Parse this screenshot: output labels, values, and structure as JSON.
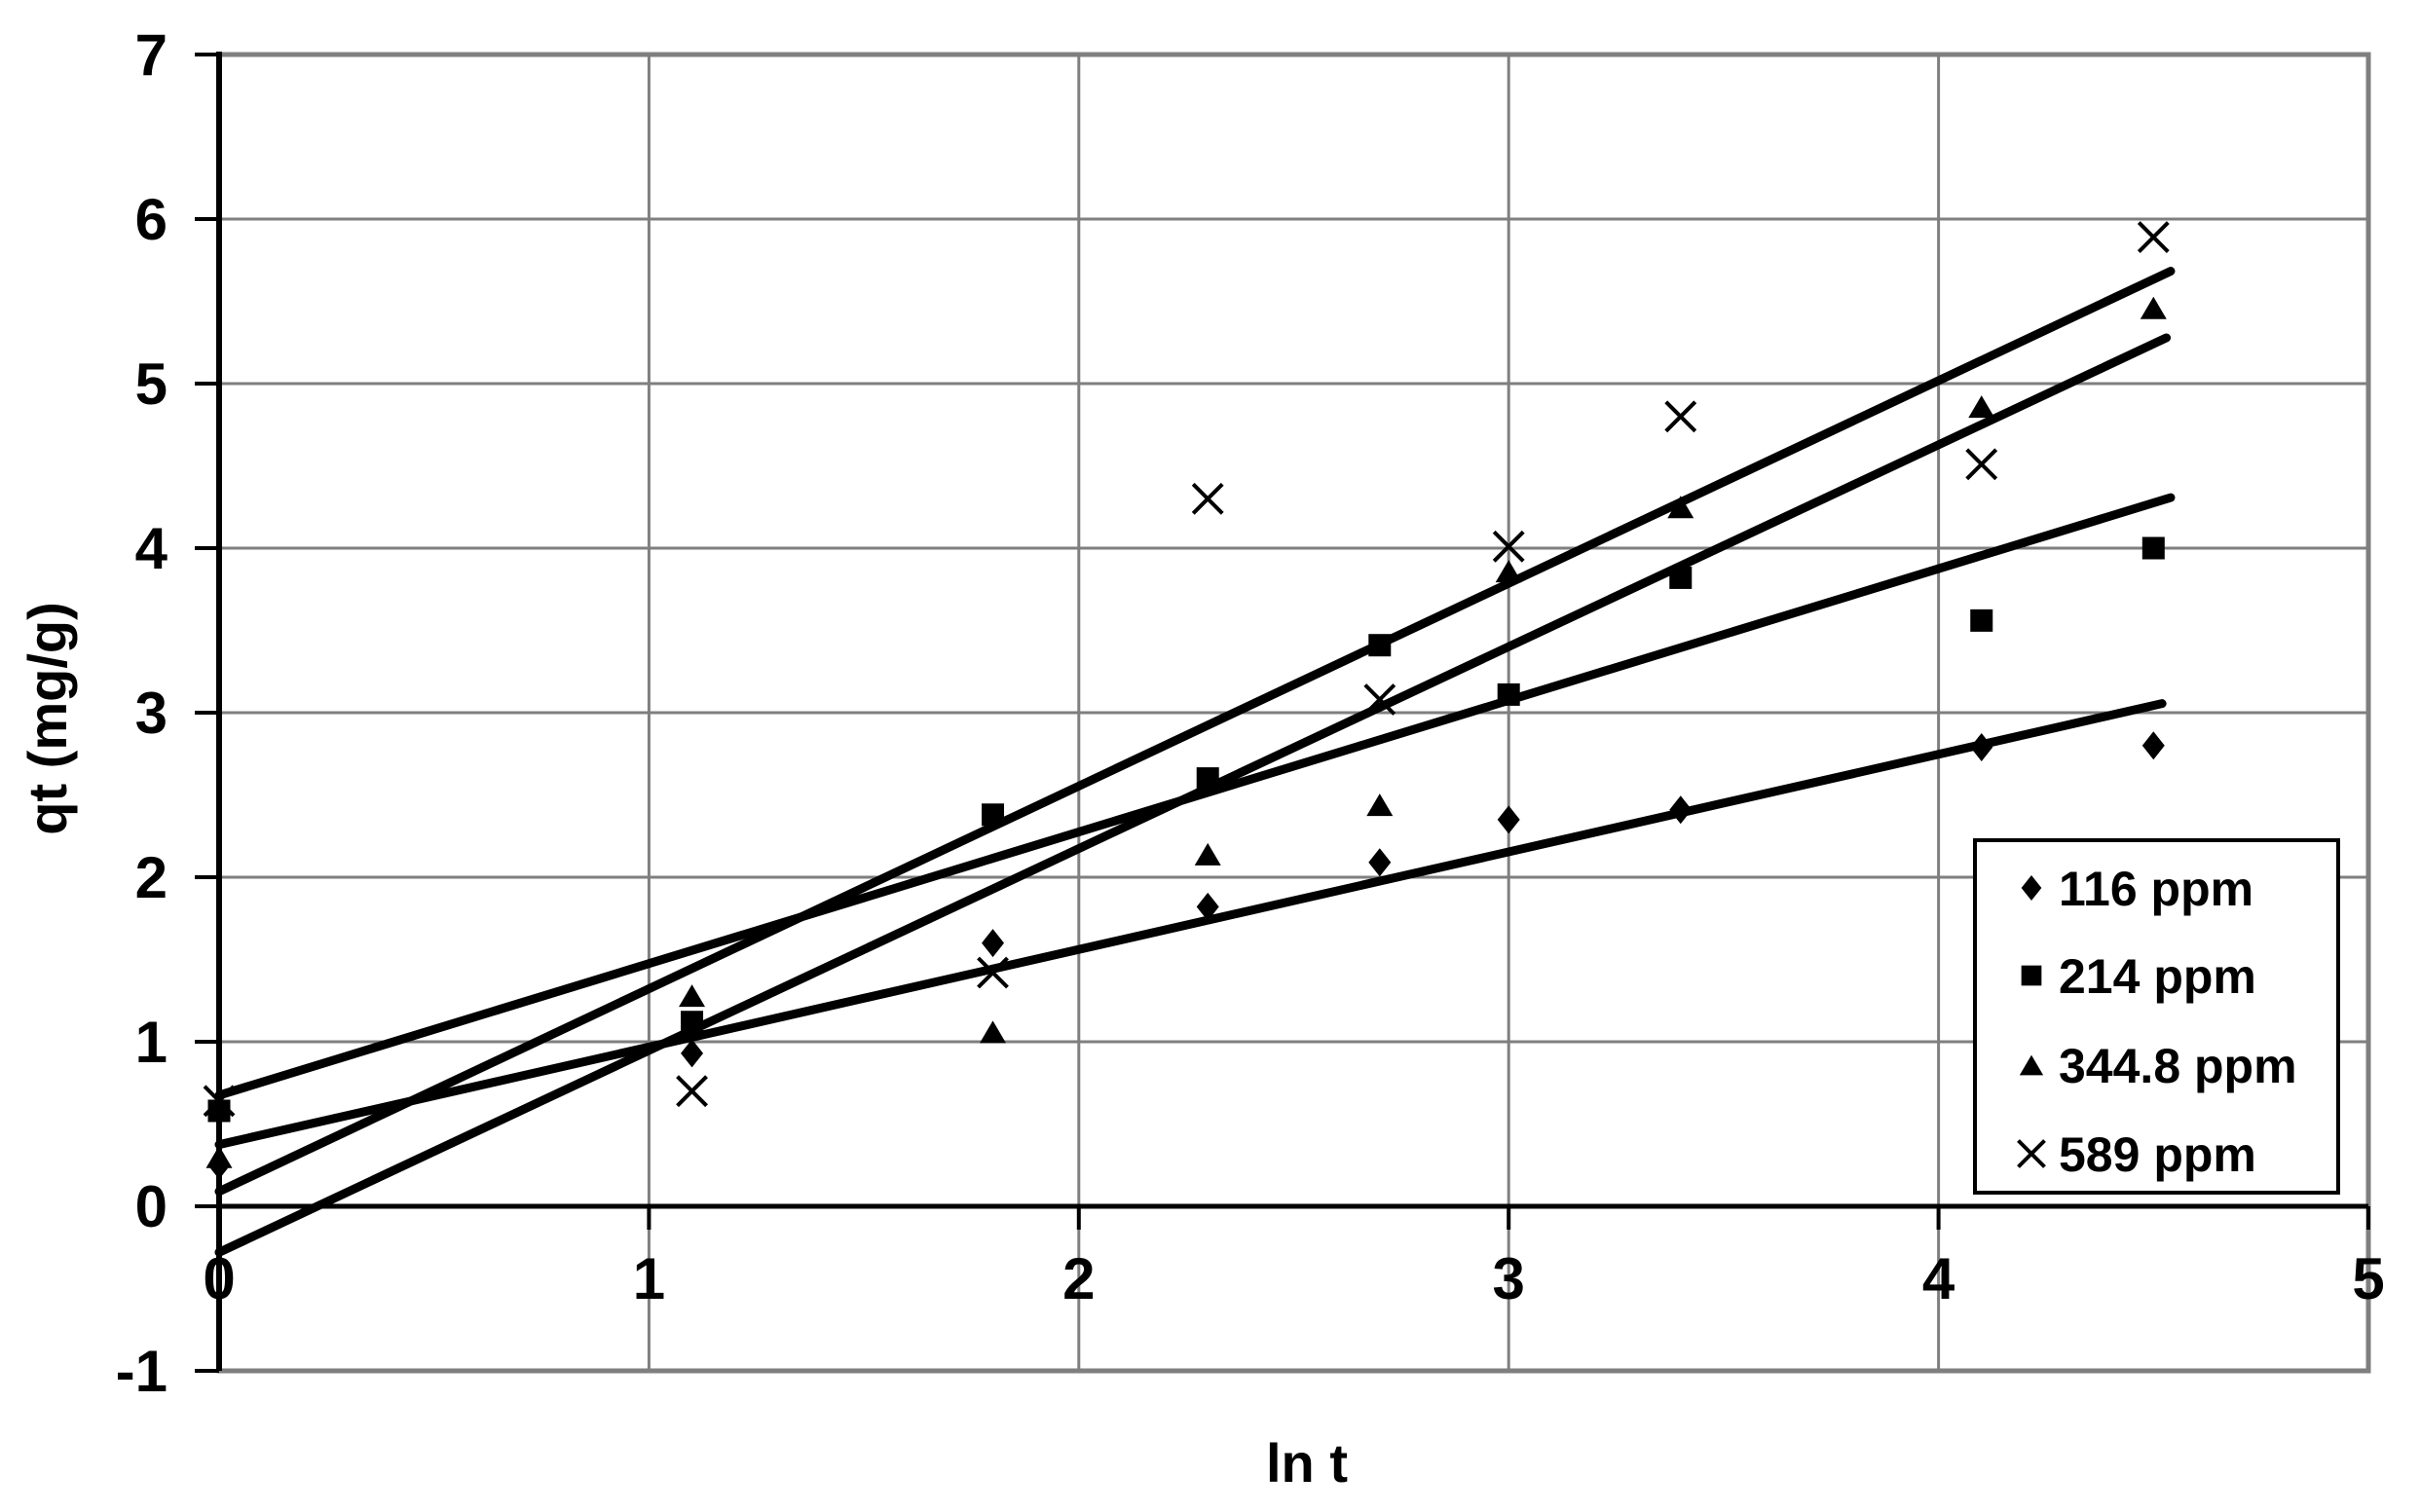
{
  "colors": {
    "foreground": "#000000",
    "gridline": "#7f7f7f",
    "plot_border": "#7f7f7f",
    "background": "#ffffff"
  },
  "chart_data": {
    "type": "scatter",
    "title": "",
    "xlabel": "ln t",
    "ylabel": "qt (mg/g)",
    "xlim": [
      0,
      5
    ],
    "ylim": [
      -1,
      7
    ],
    "x_ticks": [
      0,
      1,
      2,
      3,
      4,
      5
    ],
    "y_ticks": [
      -1,
      0,
      1,
      2,
      3,
      4,
      5,
      6,
      7
    ],
    "grid": true,
    "legend_position": "inside-right-middle",
    "series": [
      {
        "name": "116 ppm",
        "marker": "diamond",
        "points": [
          [
            0,
            0.25
          ],
          [
            1.1,
            0.93
          ],
          [
            1.8,
            1.6
          ],
          [
            2.3,
            1.82
          ],
          [
            2.7,
            2.09
          ],
          [
            3.0,
            2.35
          ],
          [
            3.4,
            2.41
          ],
          [
            4.1,
            2.79
          ],
          [
            4.5,
            2.8
          ]
        ],
        "trendline": {
          "slope": 0.593,
          "intercept": 0.375,
          "x_range": [
            0,
            4.52
          ]
        }
      },
      {
        "name": "214 ppm",
        "marker": "square",
        "points": [
          [
            0,
            0.58
          ],
          [
            1.1,
            1.12
          ],
          [
            1.8,
            2.38
          ],
          [
            2.3,
            2.6
          ],
          [
            2.7,
            3.41
          ],
          [
            3.0,
            3.11
          ],
          [
            3.4,
            3.82
          ],
          [
            4.1,
            3.56
          ],
          [
            4.5,
            4.0
          ]
        ],
        "trendline": {
          "slope": 0.8,
          "intercept": 0.675,
          "x_range": [
            0,
            4.54
          ]
        }
      },
      {
        "name": "344.8 ppm",
        "marker": "triangle",
        "points": [
          [
            0,
            0.3
          ],
          [
            1.1,
            1.28
          ],
          [
            1.8,
            1.06
          ],
          [
            2.3,
            2.14
          ],
          [
            2.7,
            2.44
          ],
          [
            3.0,
            3.86
          ],
          [
            3.4,
            4.25
          ],
          [
            4.1,
            4.86
          ],
          [
            4.5,
            5.46
          ]
        ],
        "trendline": {
          "slope": 1.227,
          "intercept": -0.28,
          "x_range": [
            0,
            4.53
          ]
        }
      },
      {
        "name": "589 ppm",
        "marker": "x",
        "points": [
          [
            0,
            0.64
          ],
          [
            1.1,
            0.7
          ],
          [
            1.8,
            1.42
          ],
          [
            2.3,
            4.3
          ],
          [
            2.7,
            3.08
          ],
          [
            3.0,
            4.01
          ],
          [
            3.4,
            4.8
          ],
          [
            4.1,
            4.51
          ],
          [
            4.5,
            5.89
          ]
        ],
        "trendline": {
          "slope": 1.232,
          "intercept": 0.09,
          "x_range": [
            0,
            4.54
          ]
        }
      }
    ]
  }
}
